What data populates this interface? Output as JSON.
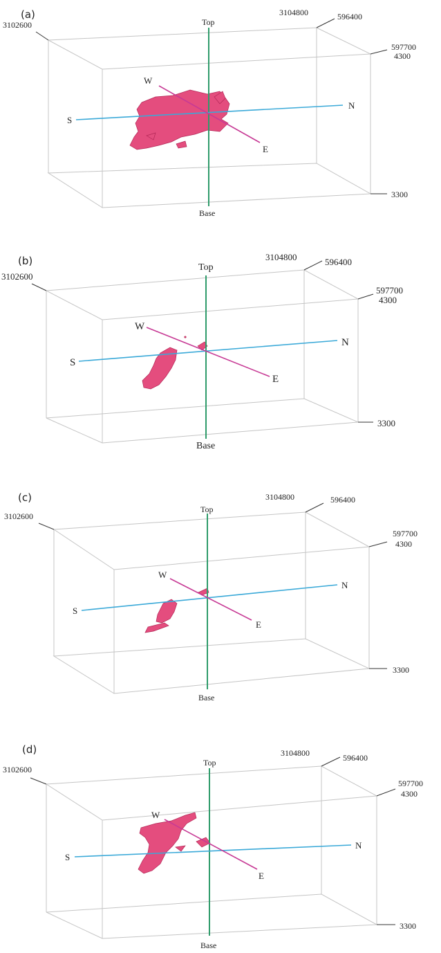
{
  "panels": [
    {
      "id": "a",
      "label": "(a)",
      "corner_left": "3102600",
      "corner_back_y": "3104800",
      "corner_back_x": "596400",
      "corner_right_x": "597700",
      "elev_top": "4300",
      "elev_base": "3300",
      "axis_top": "Top",
      "axis_base": "Base",
      "dir_s": "S",
      "dir_n": "N",
      "dir_w": "W",
      "dir_e": "E",
      "orebody_extent": "large"
    },
    {
      "id": "b",
      "label": "(b)",
      "corner_left": "3102600",
      "corner_back_y": "3104800",
      "corner_back_x": "596400",
      "corner_right_x": "597700",
      "elev_top": "4300",
      "elev_base": "3300",
      "axis_top": "Top",
      "axis_base": "Base",
      "dir_s": "S",
      "dir_n": "N",
      "dir_w": "W",
      "dir_e": "E",
      "orebody_extent": "medium"
    },
    {
      "id": "c",
      "label": "(c)",
      "corner_left": "3102600",
      "corner_back_y": "3104800",
      "corner_back_x": "596400",
      "corner_right_x": "597700",
      "elev_top": "4300",
      "elev_base": "3300",
      "axis_top": "Top",
      "axis_base": "Base",
      "dir_s": "S",
      "dir_n": "N",
      "dir_w": "W",
      "dir_e": "E",
      "orebody_extent": "small"
    },
    {
      "id": "d",
      "label": "(d)",
      "corner_left": "3102600",
      "corner_back_y": "3104800",
      "corner_back_x": "596400",
      "corner_right_x": "597700",
      "elev_top": "4300",
      "elev_base": "3300",
      "axis_top": "Top",
      "axis_base": "Base",
      "dir_s": "S",
      "dir_n": "N",
      "dir_w": "W",
      "dir_e": "E",
      "orebody_extent": "medium-large"
    }
  ],
  "colors": {
    "orebody": "#e44d7e",
    "vertical_axis": "#2e9b6a",
    "sn_axis": "#3aa9d8",
    "we_axis": "#c73a95",
    "box_edges": "#c4c4c4"
  }
}
